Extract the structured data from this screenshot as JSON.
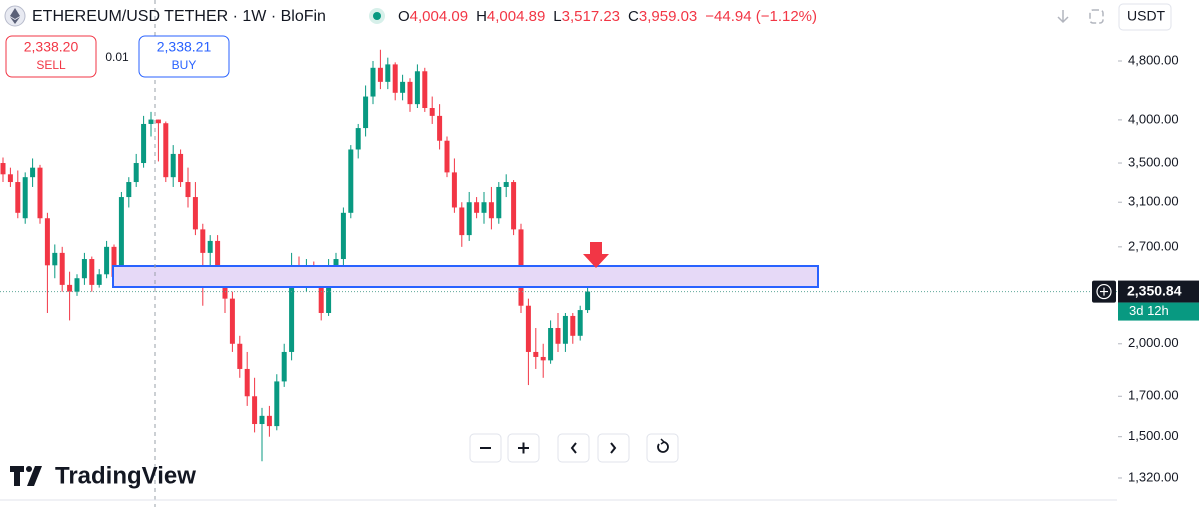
{
  "header": {
    "symbol": "ETHEREUM/USD TETHER · 1W · BloFin",
    "ohlc": [
      {
        "key": "O",
        "value": "4,004.09"
      },
      {
        "key": "H",
        "value": "4,004.89"
      },
      {
        "key": "L",
        "value": "3,517.23"
      },
      {
        "key": "C",
        "value": "3,959.03"
      }
    ],
    "change": "−44.94 (−1.12%)",
    "currency": "USDT"
  },
  "trade": {
    "sell_price": "2,338.20",
    "sell_label": "SELL",
    "spread": "0.01",
    "buy_price": "2,338.21",
    "buy_label": "BUY"
  },
  "branding": "TradingView",
  "chart_data": {
    "type": "candlestick",
    "log_scale": true,
    "up_color": "#089981",
    "down_color": "#f23645",
    "categories": [
      null,
      null,
      null,
      null,
      null,
      null,
      null,
      null,
      null,
      null,
      null,
      null,
      null,
      null,
      null,
      null,
      null,
      null,
      null,
      null,
      null,
      null,
      null,
      null,
      null,
      null,
      null,
      null,
      null,
      null,
      null,
      null,
      null,
      null,
      null,
      null,
      null,
      null,
      null,
      null,
      null,
      null,
      null,
      null,
      null,
      null,
      null,
      null,
      null,
      null,
      null,
      null,
      null,
      null,
      null,
      null,
      null,
      null,
      null,
      null,
      null,
      null,
      null,
      null,
      null,
      null,
      null,
      null,
      null,
      null,
      null,
      null,
      null,
      null,
      null,
      null,
      null,
      null,
      null,
      null
    ],
    "open": [
      3500,
      3380,
      3300,
      2950,
      3350,
      3450,
      2950,
      2550,
      2650,
      2400,
      2350,
      2450,
      2600,
      2400,
      2480,
      2700,
      2460,
      3150,
      3300,
      3500,
      3950,
      4004.09,
      3959,
      3350,
      3600,
      3300,
      3150,
      2850,
      2650,
      2750,
      2450,
      2300,
      2000,
      1850,
      1700,
      1560,
      1600,
      1550,
      1780,
      1950,
      2550,
      2500,
      2550,
      2480,
      2200,
      2550,
      2600,
      3000,
      3650,
      3900,
      4300,
      4700,
      4500,
      4750,
      4350,
      4500,
      4200,
      4650,
      4150,
      4050,
      3750,
      3400,
      3050,
      2800,
      3100,
      3000,
      3100,
      2950,
      3250,
      3300,
      2850,
      2250,
      1950,
      1920,
      1900,
      2100,
      2000,
      2180,
      2050,
      2220
    ],
    "high": [
      3560,
      3450,
      3420,
      3400,
      3550,
      3480,
      3000,
      2720,
      2700,
      2500,
      2480,
      2650,
      2620,
      2520,
      2750,
      2720,
      3200,
      3350,
      3600,
      4050,
      4100,
      4004.89,
      3980,
      3700,
      3650,
      3450,
      3300,
      2900,
      2800,
      2800,
      2550,
      2350,
      2050,
      1950,
      1800,
      1640,
      1650,
      1820,
      2000,
      2650,
      2620,
      2600,
      2580,
      2550,
      2600,
      2650,
      3050,
      3700,
      3950,
      4450,
      4800,
      4970,
      4850,
      4780,
      4600,
      4550,
      4750,
      4700,
      4300,
      4200,
      3800,
      3550,
      3100,
      3200,
      3150,
      3200,
      3250,
      3300,
      3380,
      3320,
      2900,
      2300,
      2100,
      2000,
      2150,
      2200,
      2200,
      2200,
      2250,
      2400
    ],
    "low": [
      3300,
      3250,
      2950,
      2900,
      3250,
      2900,
      2200,
      2450,
      2350,
      2150,
      2320,
      2400,
      2350,
      2380,
      2450,
      2420,
      2400,
      3050,
      3250,
      3450,
      3800,
      3517.23,
      3300,
      3250,
      3250,
      3050,
      2800,
      2250,
      2500,
      2400,
      2200,
      1950,
      1800,
      1650,
      1520,
      1390,
      1500,
      1530,
      1750,
      1900,
      2400,
      2350,
      2400,
      2150,
      2180,
      2450,
      2550,
      2950,
      3550,
      3800,
      4200,
      4400,
      4400,
      4250,
      4250,
      4100,
      4150,
      4100,
      3950,
      3650,
      3350,
      3000,
      2700,
      2750,
      2950,
      2900,
      2850,
      2900,
      3150,
      2800,
      2200,
      1760,
      1850,
      1800,
      1880,
      1950,
      1950,
      2000,
      2020,
      2200
    ],
    "close": [
      3380,
      3300,
      3000,
      3350,
      3450,
      2950,
      2550,
      2650,
      2400,
      2350,
      2450,
      2600,
      2400,
      2480,
      2700,
      2460,
      3150,
      3300,
      3500,
      3950,
      4004,
      3959.03,
      3350,
      3600,
      3300,
      3150,
      2850,
      2650,
      2750,
      2450,
      2300,
      2000,
      1850,
      1700,
      1560,
      1600,
      1550,
      1780,
      1950,
      2550,
      2500,
      2550,
      2480,
      2200,
      2550,
      2600,
      3000,
      3650,
      3900,
      4300,
      4700,
      4500,
      4750,
      4350,
      4500,
      4200,
      4650,
      4150,
      4050,
      3750,
      3400,
      3050,
      2800,
      3100,
      3000,
      3100,
      2950,
      3250,
      3300,
      2850,
      2250,
      1950,
      1920,
      1900,
      2100,
      2000,
      2180,
      2050,
      2220,
      2350.84
    ],
    "ylim": [
      1233,
      5798
    ],
    "yticks": [
      {
        "value": 1320,
        "label": "1,320.00"
      },
      {
        "value": 1500,
        "label": "1,500.00"
      },
      {
        "value": 1700,
        "label": "1,700.00"
      },
      {
        "value": 2000,
        "label": "2,000.00"
      },
      {
        "value": 2700,
        "label": "2,700.00"
      },
      {
        "value": 3100,
        "label": "3,100.00"
      },
      {
        "value": 3500,
        "label": "3,500.00"
      },
      {
        "value": 4000,
        "label": "4,000.00"
      },
      {
        "value": 4800,
        "label": "4,800.00"
      }
    ],
    "price_line": {
      "value": 2350.84,
      "label": "2,350.84",
      "countdown": "3d 12h"
    }
  }
}
